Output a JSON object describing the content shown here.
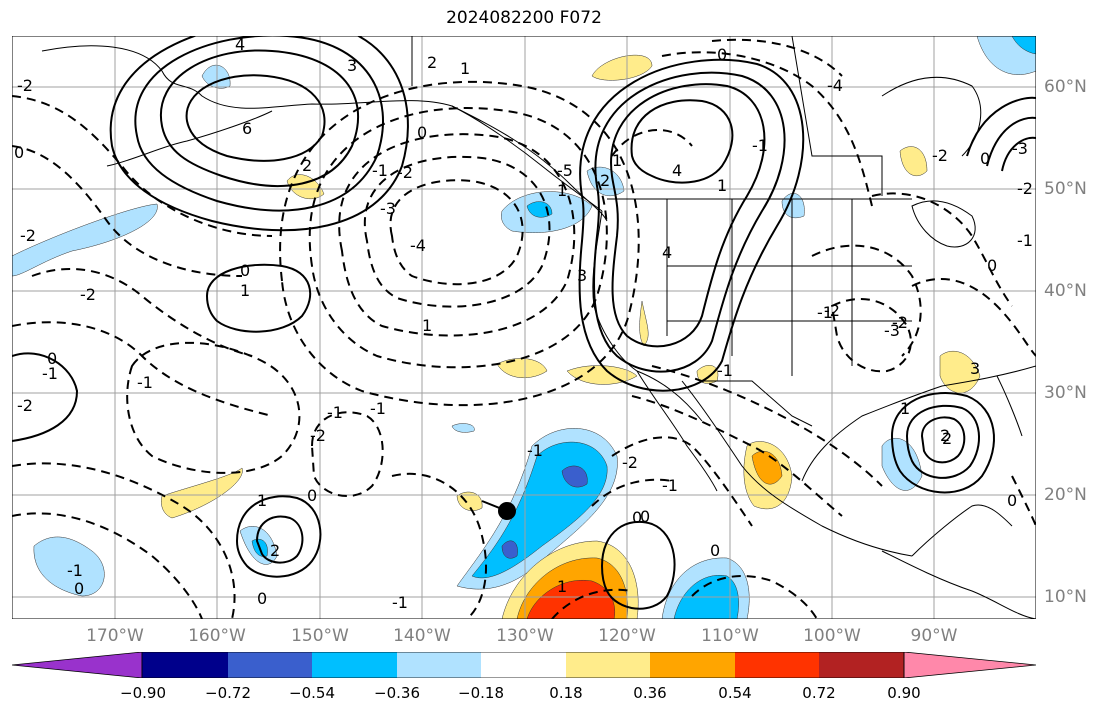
{
  "title": "2024082200 F072",
  "longitude_labels": [
    "170°W",
    "160°W",
    "150°W",
    "140°W",
    "130°W",
    "120°W",
    "110°W",
    "100°W",
    "90°W"
  ],
  "latitude_labels": [
    "60°N",
    "50°N",
    "40°N",
    "30°N",
    "20°N",
    "10°N"
  ],
  "colorbar": {
    "tick_labels": [
      "−0.90",
      "−0.72",
      "−0.54",
      "−0.36",
      "−0.18",
      "0.18",
      "0.36",
      "0.54",
      "0.72",
      "0.90"
    ],
    "colors": [
      "#9932cc",
      "#00008b",
      "#3a5fcd",
      "#00bfff",
      "#b0e2ff",
      "#ffffff",
      "#ffec8b",
      "#ffa500",
      "#ff3300",
      "#b22222",
      "#ff88aa"
    ]
  },
  "contour_labels": [
    "4",
    "3",
    "6",
    "2",
    "2",
    "1",
    "0",
    "-1",
    "-2",
    "-3",
    "-4",
    "-5",
    "-2",
    "0",
    "1",
    "-2",
    "0",
    "-1",
    "-2",
    "-1",
    "1",
    "-1",
    "-2",
    "-1",
    "-2",
    "0",
    "1",
    "1",
    "4",
    "4",
    "3",
    "2",
    "1",
    "0",
    "-1",
    "-2",
    "-3",
    "-4",
    "0",
    "-2",
    "-2",
    "-3",
    "-1",
    "0",
    "1",
    "2",
    "3",
    "2",
    "0",
    "-2",
    "-1",
    "0",
    "0",
    "1",
    "2",
    "-1",
    "0",
    "1",
    "-1",
    "0",
    "0",
    "-1",
    "-2",
    "-1",
    "0",
    "-1"
  ],
  "marker": "storm-center-marker"
}
